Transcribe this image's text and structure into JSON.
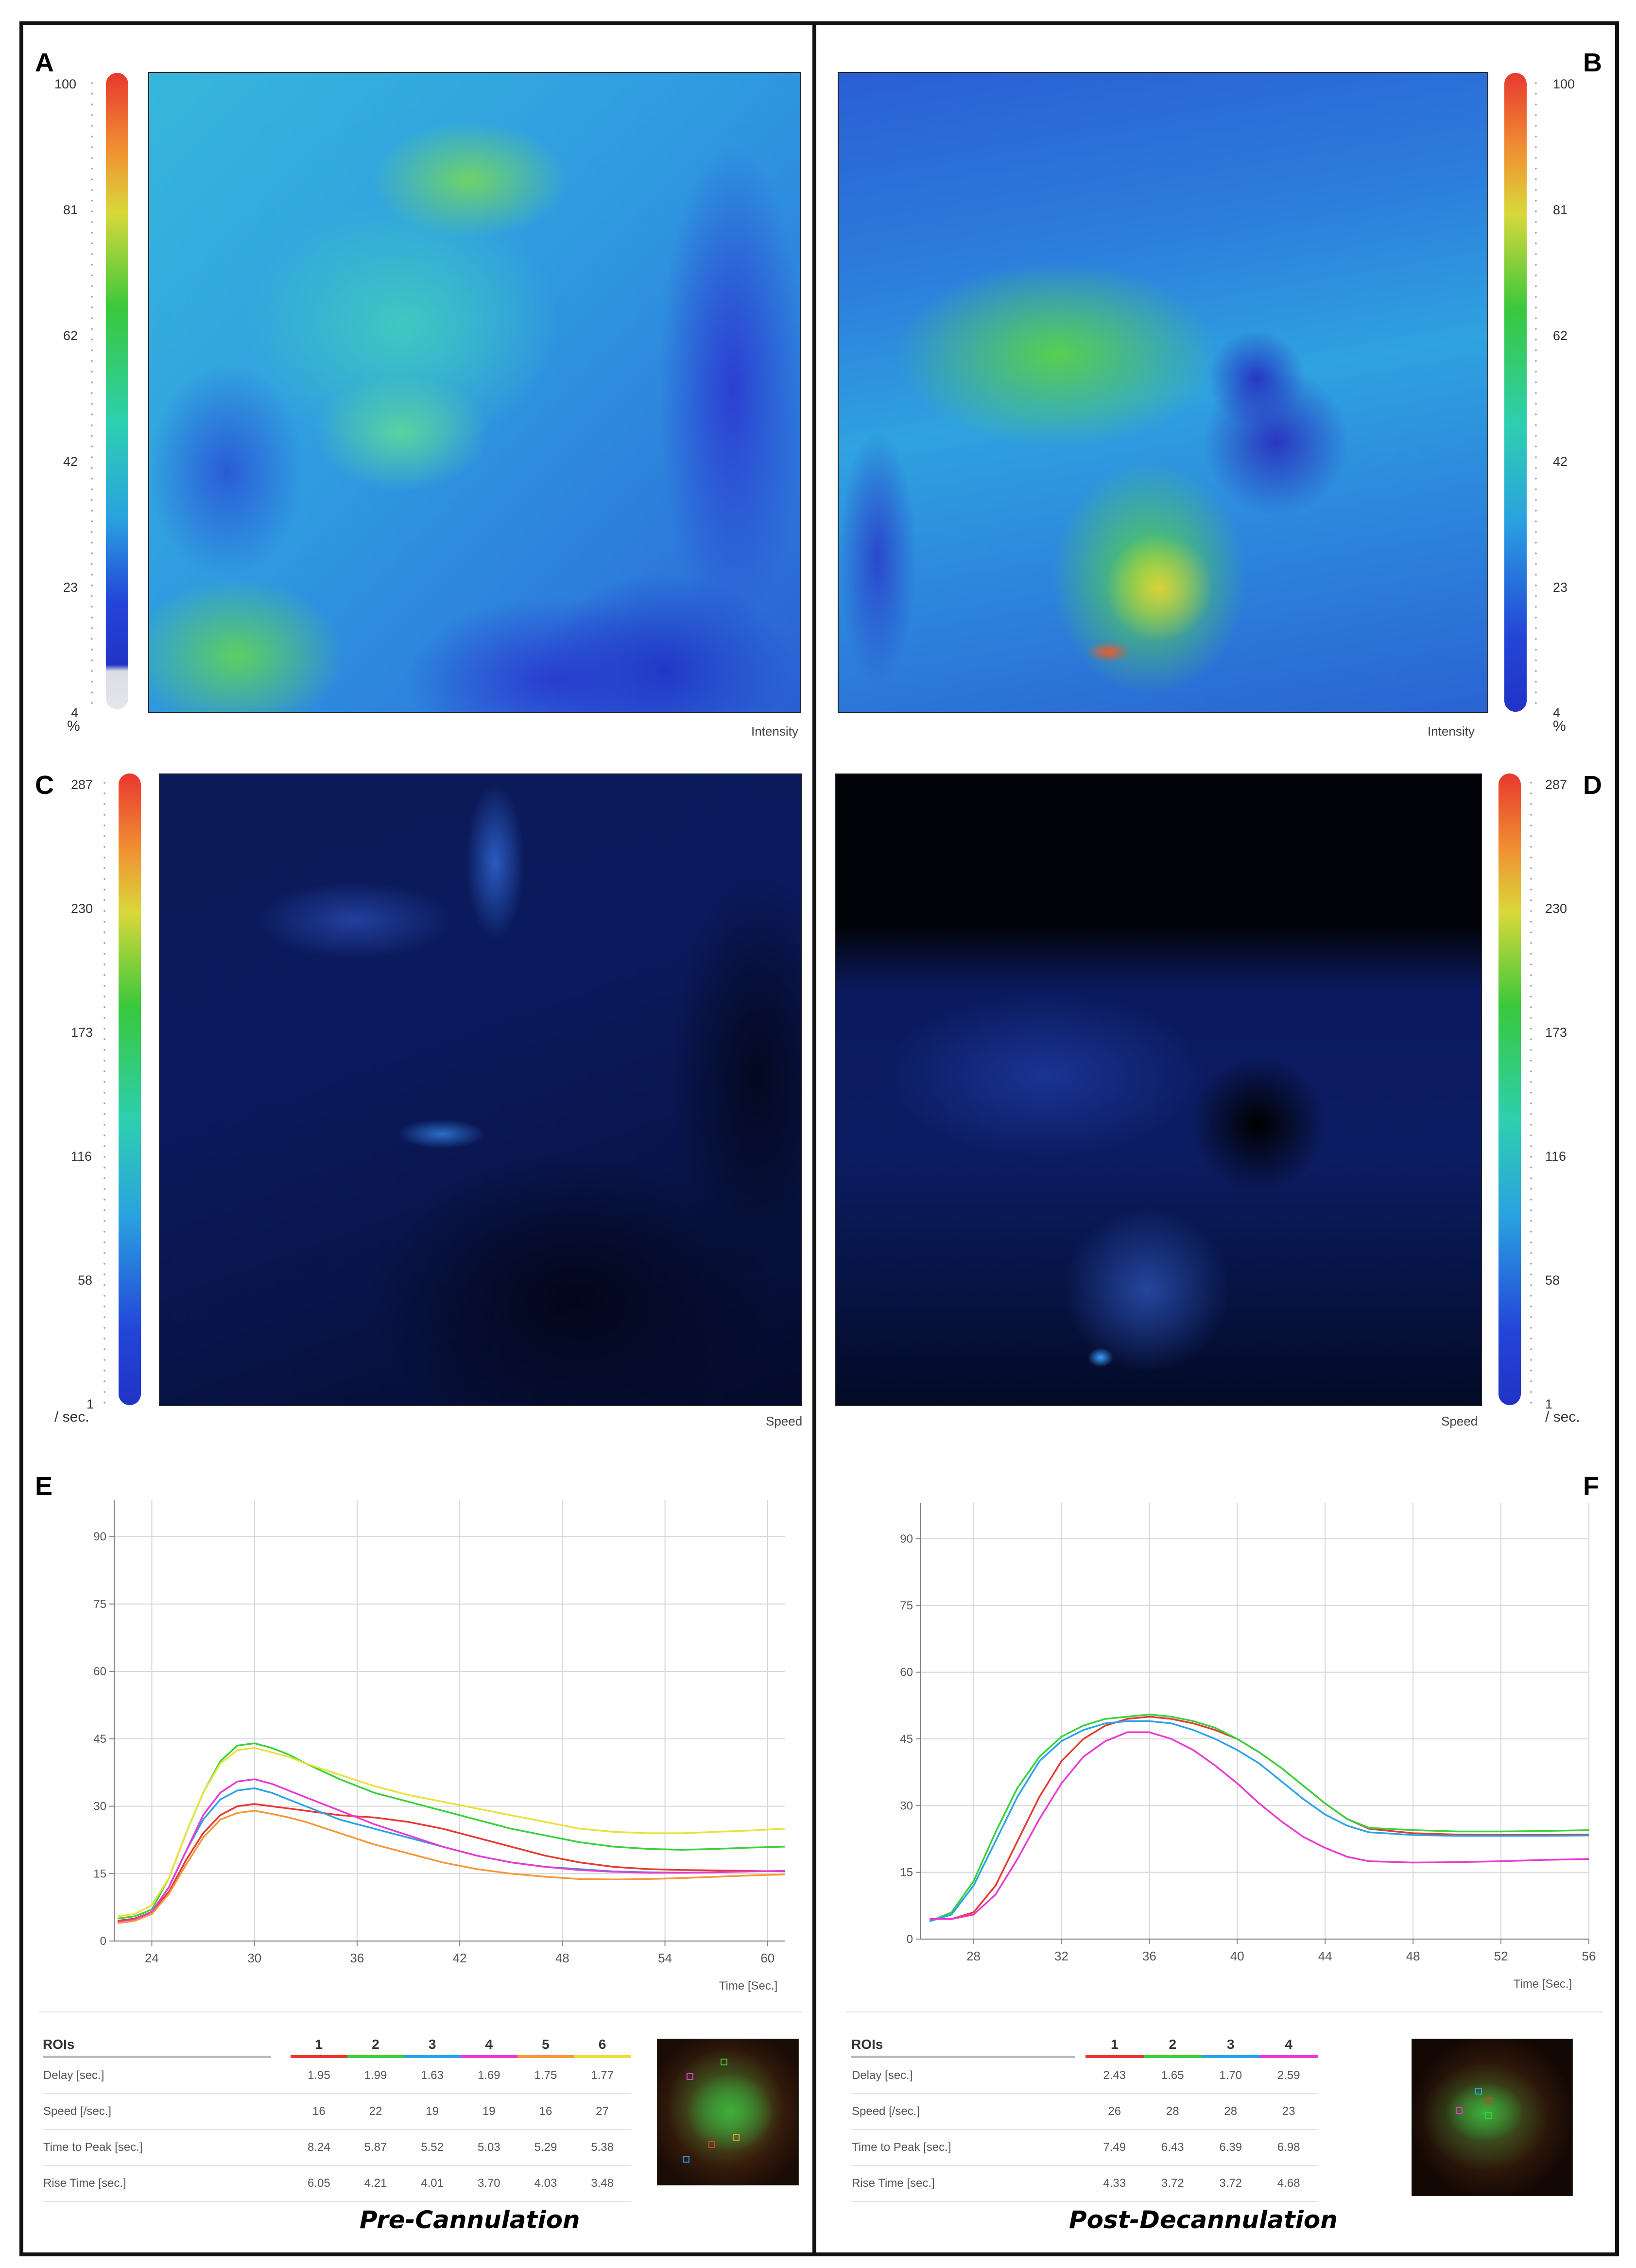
{
  "panels": {
    "letters": [
      "A",
      "B",
      "C",
      "D",
      "E",
      "F"
    ],
    "captions": {
      "left": "Pre-Cannulation",
      "right": "Post-Decannulation"
    }
  },
  "intensity_colorbar": {
    "ticks": [
      "100",
      "81",
      "62",
      "42",
      "23",
      "4"
    ],
    "unit": "%",
    "caption": "Intensity"
  },
  "speed_colorbar": {
    "ticks": [
      "287",
      "230",
      "173",
      "116",
      "58",
      "1"
    ],
    "unit": "/ sec.",
    "caption": "Speed"
  },
  "colors": {
    "roi_1": "#e8382f",
    "roi_2": "#39d13c",
    "roi_3": "#2ba3e8",
    "roi_4": "#e83ad1",
    "roi_5": "#f5973a",
    "roi_6": "#e8e23a",
    "heat_low": "#2433c8",
    "heat_high": "#e83a22"
  },
  "chart_data": [
    {
      "type": "line",
      "panel": "E",
      "xlabel": "Time [Sec.]",
      "x_ticks": [
        "24",
        "30",
        "36",
        "42",
        "48",
        "54",
        "60"
      ],
      "y_ticks": [
        "0",
        "15",
        "30",
        "45",
        "60",
        "75",
        "90"
      ],
      "xlim": [
        21.8,
        61
      ],
      "ylim": [
        0,
        97
      ],
      "grid": true,
      "x": [
        22,
        23,
        24,
        25,
        26,
        27,
        28,
        29,
        30,
        31,
        32,
        33,
        35,
        37,
        39,
        41,
        43,
        45,
        47,
        49,
        51,
        53,
        55,
        57,
        59,
        61
      ],
      "series": [
        {
          "name": "1",
          "color": "#e8382f",
          "values": [
            4.5,
            5,
            6.5,
            11,
            18,
            24,
            28,
            30,
            30.5,
            30,
            29.5,
            29,
            28,
            27.5,
            26.5,
            25,
            23,
            21,
            19,
            17.5,
            16.5,
            16,
            15.8,
            15.7,
            15.6,
            15.5
          ]
        },
        {
          "name": "2",
          "color": "#39d13c",
          "values": [
            5,
            5.5,
            7,
            14,
            24,
            33,
            40,
            43.5,
            44,
            43,
            41.5,
            39.5,
            36,
            33,
            31,
            29,
            27,
            25,
            23.5,
            22,
            21,
            20.5,
            20.3,
            20.5,
            20.8,
            21
          ]
        },
        {
          "name": "3",
          "color": "#2ba3e8",
          "values": [
            4,
            4.5,
            6.5,
            12,
            20,
            27,
            31.5,
            33.5,
            34,
            33,
            31.5,
            30,
            27,
            25,
            23,
            21,
            19,
            17.5,
            16.5,
            16,
            15.5,
            15.3,
            15.2,
            15.3,
            15.5,
            15.6
          ]
        },
        {
          "name": "4",
          "color": "#e83ad1",
          "values": [
            4.2,
            4.8,
            6.5,
            12,
            20,
            28,
            33,
            35.5,
            36,
            35,
            33.5,
            32,
            29,
            26,
            23.5,
            21,
            19,
            17.5,
            16.5,
            15.8,
            15.4,
            15.2,
            15.2,
            15.3,
            15.5,
            15.6
          ]
        },
        {
          "name": "5",
          "color": "#f5973a",
          "values": [
            4,
            4.5,
            6,
            10.5,
            17,
            23,
            27,
            28.5,
            29,
            28.3,
            27.5,
            26.5,
            24,
            21.5,
            19.5,
            17.5,
            16,
            15,
            14.3,
            13.8,
            13.7,
            13.8,
            14,
            14.3,
            14.6,
            14.8
          ]
        },
        {
          "name": "6",
          "color": "#e8e23a",
          "values": [
            5.5,
            6,
            8,
            14,
            24,
            33,
            39.5,
            42.5,
            43,
            42,
            41,
            39.5,
            37,
            34.5,
            32.5,
            31,
            29.5,
            28,
            26.5,
            25,
            24.3,
            24,
            24,
            24.3,
            24.6,
            25
          ]
        }
      ]
    },
    {
      "type": "line",
      "panel": "F",
      "xlabel": "Time [Sec.]",
      "x_ticks": [
        "28",
        "32",
        "36",
        "40",
        "44",
        "48",
        "52",
        "56"
      ],
      "y_ticks": [
        "0",
        "15",
        "30",
        "45",
        "60",
        "75",
        "90"
      ],
      "xlim": [
        25.6,
        56
      ],
      "ylim": [
        0,
        97
      ],
      "grid": true,
      "x": [
        26,
        27,
        28,
        29,
        30,
        31,
        32,
        33,
        34,
        35,
        36,
        37,
        38,
        39,
        40,
        41,
        42,
        43,
        44,
        45,
        46,
        48,
        50,
        52,
        54,
        56
      ],
      "series": [
        {
          "name": "1",
          "color": "#e8382f",
          "values": [
            4.5,
            4.5,
            6,
            12,
            22,
            32,
            40,
            45,
            48,
            49.5,
            50,
            49.5,
            48.5,
            47,
            45,
            42,
            38.5,
            34.5,
            30.5,
            27,
            24.8,
            23.8,
            23.5,
            23.4,
            23.4,
            23.5
          ]
        },
        {
          "name": "2",
          "color": "#39d13c",
          "values": [
            4,
            6,
            13,
            24,
            34,
            41,
            45.5,
            48,
            49.5,
            50,
            50.5,
            50,
            49,
            47.5,
            45,
            42,
            38.5,
            34.5,
            30.5,
            27,
            25,
            24.5,
            24.2,
            24.2,
            24.3,
            24.5
          ]
        },
        {
          "name": "3",
          "color": "#2ba3e8",
          "values": [
            4,
            5.5,
            12,
            22,
            32,
            40,
            44.5,
            47,
            48.5,
            49,
            49,
            48.5,
            47,
            45,
            42.5,
            39.5,
            35.5,
            31.5,
            28,
            25.5,
            24,
            23.4,
            23.2,
            23.2,
            23.2,
            23.3
          ]
        },
        {
          "name": "4",
          "color": "#e83ad1",
          "values": [
            4.5,
            4.5,
            5.5,
            10,
            18,
            27,
            35,
            41,
            44.5,
            46.5,
            46.5,
            45,
            42.5,
            39,
            35,
            30.5,
            26.5,
            23,
            20.5,
            18.5,
            17.5,
            17.2,
            17.3,
            17.5,
            17.8,
            18
          ]
        }
      ]
    }
  ],
  "roi_tables": {
    "left": {
      "header": "ROIs",
      "columns": [
        "1",
        "2",
        "3",
        "4",
        "5",
        "6"
      ],
      "rows": [
        {
          "label": "Delay [sec.]",
          "values": [
            "1.95",
            "1.99",
            "1.63",
            "1.69",
            "1.75",
            "1.77"
          ]
        },
        {
          "label": "Speed [/sec.]",
          "values": [
            "16",
            "22",
            "19",
            "19",
            "16",
            "27"
          ]
        },
        {
          "label": "Time to Peak [sec.]",
          "values": [
            "8.24",
            "5.87",
            "5.52",
            "5.03",
            "5.29",
            "5.38"
          ]
        },
        {
          "label": "Rise Time [sec.]",
          "values": [
            "6.05",
            "4.21",
            "4.01",
            "3.70",
            "4.03",
            "3.48"
          ]
        }
      ]
    },
    "right": {
      "header": "ROIs",
      "columns": [
        "1",
        "2",
        "3",
        "4"
      ],
      "rows": [
        {
          "label": "Delay [sec.]",
          "values": [
            "2.43",
            "1.65",
            "1.70",
            "2.59"
          ]
        },
        {
          "label": "Speed [/sec.]",
          "values": [
            "26",
            "28",
            "28",
            "23"
          ]
        },
        {
          "label": "Time to Peak [sec.]",
          "values": [
            "7.49",
            "6.43",
            "6.39",
            "6.98"
          ]
        },
        {
          "label": "Rise Time [sec.]",
          "values": [
            "4.33",
            "3.72",
            "3.72",
            "4.68"
          ]
        }
      ]
    }
  }
}
